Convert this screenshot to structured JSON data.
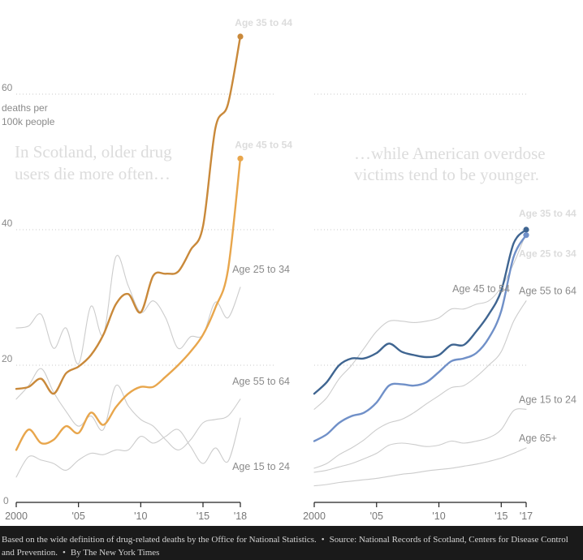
{
  "chart_data": [
    {
      "type": "line",
      "panel": "scotland",
      "annotation": "In Scotland, older drug users die more often…",
      "x_ticks": [
        2000,
        2005,
        2010,
        2015,
        2018
      ],
      "x_tick_labels": [
        "2000",
        "'05",
        "'10",
        "'15",
        "'18"
      ],
      "xlim": [
        2000,
        2018
      ],
      "y_ticks": [
        0,
        20,
        40,
        60
      ],
      "y_tick_labels": [
        "0",
        "20",
        "40",
        "60"
      ],
      "ylim": [
        0,
        70
      ],
      "ylabel": "deaths per 100k people",
      "series": [
        {
          "name": "Age 35 to 44",
          "color": "#c9893a",
          "highlight": true,
          "dot": true,
          "label_color": "#dcdcdc",
          "label_placement": "top-end",
          "x": [
            2000,
            2001,
            2002,
            2003,
            2004,
            2005,
            2006,
            2007,
            2008,
            2009,
            2010,
            2011,
            2012,
            2013,
            2014,
            2015,
            2016,
            2017,
            2018
          ],
          "y": [
            16.5,
            16.8,
            18,
            15.8,
            18.8,
            19.8,
            21.5,
            24.5,
            29,
            30.5,
            27.8,
            33.2,
            33.5,
            33.8,
            37,
            40.5,
            55,
            58.5,
            68.5
          ]
        },
        {
          "name": "Age 45 to 54",
          "color": "#e8a64c",
          "highlight": true,
          "dot": true,
          "label_color": "#dcdcdc",
          "label_placement": "top-end",
          "x": [
            2000,
            2001,
            2002,
            2003,
            2004,
            2005,
            2006,
            2007,
            2008,
            2009,
            2010,
            2011,
            2012,
            2013,
            2014,
            2015,
            2016,
            2017,
            2018
          ],
          "y": [
            7.5,
            10.5,
            8.5,
            9,
            11,
            10,
            13,
            11.2,
            13.8,
            15.8,
            16.8,
            16.8,
            18.3,
            20,
            22,
            24.5,
            28.5,
            34,
            50.5
          ]
        },
        {
          "name": "Age 25 to 34",
          "color": "#cccccc",
          "highlight": false,
          "label_color": "#8a8a8a",
          "label_placement": "right-end",
          "x": [
            2000,
            2001,
            2002,
            2003,
            2004,
            2005,
            2006,
            2007,
            2008,
            2009,
            2010,
            2011,
            2012,
            2013,
            2014,
            2015,
            2016,
            2017,
            2018
          ],
          "y": [
            25.5,
            25.8,
            27.5,
            22.5,
            25.5,
            20.2,
            28.7,
            24.5,
            36,
            31.7,
            27.8,
            29.5,
            27,
            22.5,
            24.2,
            24.5,
            29.3,
            27,
            31.5
          ]
        },
        {
          "name": "Age 55 to 64",
          "color": "#cccccc",
          "highlight": false,
          "label_color": "#8a8a8a",
          "label_placement": "right-end",
          "x": [
            2000,
            2001,
            2002,
            2003,
            2004,
            2005,
            2006,
            2007,
            2008,
            2009,
            2010,
            2011,
            2012,
            2013,
            2014,
            2015,
            2016,
            2017,
            2018
          ],
          "y": [
            15,
            17,
            19.5,
            16,
            13.2,
            11,
            12.5,
            10.5,
            17,
            14,
            12,
            11,
            9,
            7.5,
            9,
            11.5,
            12,
            12.5,
            15
          ]
        },
        {
          "name": "Age 15 to 24",
          "color": "#cccccc",
          "highlight": false,
          "label_color": "#8a8a8a",
          "label_placement": "below-end",
          "x": [
            2000,
            2001,
            2002,
            2003,
            2004,
            2005,
            2006,
            2007,
            2008,
            2009,
            2010,
            2011,
            2012,
            2013,
            2014,
            2015,
            2016,
            2017,
            2018
          ],
          "y": [
            3.5,
            6.5,
            6,
            5.5,
            4.5,
            6,
            7,
            6.8,
            7.5,
            7.5,
            9.5,
            8.5,
            9.5,
            10.5,
            8,
            5.5,
            7.8,
            5.8,
            12.2
          ]
        }
      ]
    },
    {
      "type": "line",
      "panel": "united-states",
      "annotation": "…while American overdose victims tend to be younger.",
      "x_ticks": [
        2000,
        2005,
        2010,
        2015,
        2017
      ],
      "x_tick_labels": [
        "2000",
        "'05",
        "'10",
        "'15",
        "'17"
      ],
      "xlim": [
        2000,
        2017
      ],
      "ylim": [
        0,
        70
      ],
      "series": [
        {
          "name": "Age 35 to 44",
          "color": "#3f6591",
          "highlight": true,
          "dot": true,
          "label_color": "#dcdcdc",
          "label_placement": "top-end",
          "x": [
            2000,
            2001,
            2002,
            2003,
            2004,
            2005,
            2006,
            2007,
            2008,
            2009,
            2010,
            2011,
            2012,
            2013,
            2014,
            2015,
            2016,
            2017
          ],
          "y": [
            15.8,
            17.5,
            20,
            21,
            21,
            21.8,
            23.2,
            22,
            21.5,
            21.2,
            21.5,
            23,
            23,
            25,
            27.5,
            31,
            38,
            40
          ]
        },
        {
          "name": "Age 25 to 34",
          "color": "#7090c8",
          "highlight": true,
          "dot": true,
          "label_color": "#dcdcdc",
          "label_placement": "top-end",
          "x": [
            2000,
            2001,
            2002,
            2003,
            2004,
            2005,
            2006,
            2007,
            2008,
            2009,
            2010,
            2011,
            2012,
            2013,
            2014,
            2015,
            2016,
            2017
          ],
          "y": [
            8.8,
            9.8,
            11.5,
            12.5,
            13,
            14.5,
            17,
            17.2,
            17,
            17.5,
            19,
            20.6,
            21,
            21.8,
            24,
            28,
            36,
            39.2
          ]
        },
        {
          "name": "Age 45 to 54",
          "color": "#cccccc",
          "highlight": false,
          "label_color": "#8a8a8a",
          "label_placement": "left-end",
          "x": [
            2000,
            2001,
            2002,
            2003,
            2004,
            2005,
            2006,
            2007,
            2008,
            2009,
            2010,
            2011,
            2012,
            2013,
            2014,
            2015,
            2016,
            2017
          ],
          "y": [
            13.5,
            15.2,
            18,
            20,
            22.5,
            25,
            26.5,
            26.5,
            26.3,
            26.5,
            27,
            28.3,
            28.3,
            29,
            29.5,
            31.5,
            35,
            39.5
          ]
        },
        {
          "name": "Age 55 to 64",
          "color": "#cccccc",
          "highlight": false,
          "label_color": "#8a8a8a",
          "label_placement": "right-end",
          "x": [
            2000,
            2001,
            2002,
            2003,
            2004,
            2005,
            2006,
            2007,
            2008,
            2009,
            2010,
            2011,
            2012,
            2013,
            2014,
            2015,
            2016,
            2017
          ],
          "y": [
            4.8,
            5.5,
            6.8,
            7.8,
            9,
            10.5,
            11.5,
            12,
            13,
            14.3,
            15.5,
            16.7,
            17,
            18.3,
            20,
            22,
            26.5,
            29.5
          ]
        },
        {
          "name": "Age 15 to 24",
          "color": "#cccccc",
          "highlight": false,
          "label_color": "#8a8a8a",
          "label_placement": "right-end",
          "x": [
            2000,
            2001,
            2002,
            2003,
            2004,
            2005,
            2006,
            2007,
            2008,
            2009,
            2010,
            2011,
            2012,
            2013,
            2014,
            2015,
            2016,
            2017
          ],
          "y": [
            4.2,
            4.5,
            5,
            5.5,
            6.2,
            7,
            8.2,
            8.5,
            8.3,
            8,
            8.2,
            8.8,
            8.5,
            8.8,
            9.3,
            10.5,
            13.3,
            13.5
          ]
        },
        {
          "name": "Age 65+",
          "color": "#cccccc",
          "highlight": false,
          "label_color": "#8a8a8a",
          "label_placement": "right-end",
          "x": [
            2000,
            2001,
            2002,
            2003,
            2004,
            2005,
            2006,
            2007,
            2008,
            2009,
            2010,
            2011,
            2012,
            2013,
            2014,
            2015,
            2016,
            2017
          ],
          "y": [
            2.2,
            2.4,
            2.7,
            2.9,
            3.1,
            3.3,
            3.6,
            3.9,
            4.1,
            4.4,
            4.6,
            4.8,
            5.1,
            5.4,
            5.8,
            6.3,
            7,
            7.8
          ]
        }
      ]
    }
  ],
  "footer": {
    "note": "Based on the wide definition of drug-related deaths by the Office for National Statistics.",
    "source": "Source: National Records of Scotland, Centers for Disease Control and Prevention.",
    "credit": "By The New York Times",
    "separator": "•"
  }
}
